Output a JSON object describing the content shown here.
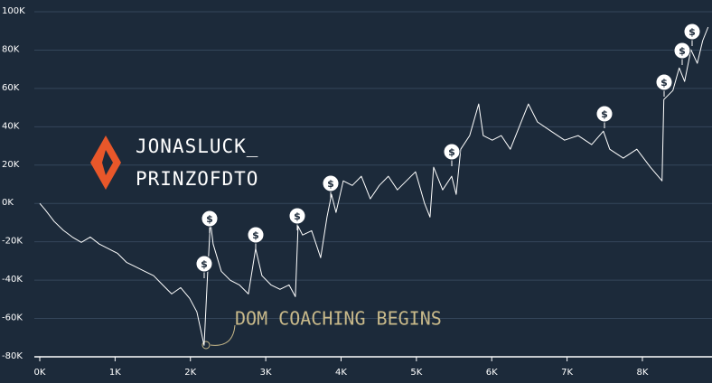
{
  "chart_data": {
    "type": "line",
    "player": [
      "JONASLUCK_",
      "PRINZOFDTO"
    ],
    "annotation": "DOM COACHING BEGINS",
    "color": "#ffffff",
    "grid": true,
    "xlim": [
      0,
      8900
    ],
    "ylim": [
      -80000,
      100000
    ],
    "xticks": [
      {
        "value": 0,
        "label": "0K"
      },
      {
        "value": 1000,
        "label": "1K"
      },
      {
        "value": 2000,
        "label": "2K"
      },
      {
        "value": 3000,
        "label": "3K"
      },
      {
        "value": 4000,
        "label": "4K"
      },
      {
        "value": 5000,
        "label": "5K"
      },
      {
        "value": 6000,
        "label": "6K"
      },
      {
        "value": 7000,
        "label": "7K"
      },
      {
        "value": 8000,
        "label": "8K"
      }
    ],
    "yticks": [
      {
        "value": -80000,
        "label": "-80K"
      },
      {
        "value": -60000,
        "label": "-60K"
      },
      {
        "value": -40000,
        "label": "-40K"
      },
      {
        "value": -20000,
        "label": "-20K"
      },
      {
        "value": 0,
        "label": "0K"
      },
      {
        "value": 20000,
        "label": "20K"
      },
      {
        "value": 40000,
        "label": "40K"
      },
      {
        "value": 60000,
        "label": "60K"
      },
      {
        "value": 80000,
        "label": "80K"
      },
      {
        "value": 100000,
        "label": "100K"
      }
    ],
    "x": [
      0,
      72,
      192,
      312,
      432,
      552,
      671,
      791,
      911,
      1031,
      1151,
      1271,
      1391,
      1511,
      1631,
      1751,
      1871,
      1990,
      2086,
      2182,
      2230,
      2266,
      2302,
      2410,
      2530,
      2650,
      2770,
      2866,
      2950,
      3070,
      3189,
      3309,
      3393,
      3429,
      3489,
      3609,
      3729,
      3813,
      3873,
      3933,
      4029,
      4149,
      4269,
      4388,
      4508,
      4628,
      4748,
      4868,
      4988,
      5108,
      5180,
      5228,
      5348,
      5468,
      5528,
      5588,
      5707,
      5827,
      5887,
      6007,
      6127,
      6247,
      6367,
      6487,
      6607,
      6787,
      6966,
      7146,
      7326,
      7482,
      7566,
      7746,
      7926,
      8106,
      8261,
      8285,
      8405,
      8489,
      8561,
      8645,
      8729,
      8801,
      8873
    ],
    "values": [
      0,
      -3300,
      -9400,
      -14000,
      -17500,
      -20300,
      -17500,
      -21200,
      -23600,
      -26000,
      -30700,
      -33000,
      -35400,
      -37700,
      -42500,
      -47200,
      -43900,
      -49500,
      -56600,
      -74000,
      -35400,
      -9400,
      -21200,
      -35400,
      -40100,
      -42500,
      -47200,
      -23600,
      -37700,
      -42500,
      -44800,
      -42500,
      -48600,
      -11800,
      -16500,
      -14200,
      -28300,
      -7100,
      4700,
      -4700,
      11800,
      9400,
      14200,
      2400,
      9400,
      14200,
      7100,
      11800,
      16500,
      0,
      -7100,
      18900,
      7100,
      14200,
      4700,
      28300,
      35400,
      51900,
      35400,
      33000,
      35400,
      28300,
      40100,
      51900,
      42500,
      37700,
      33000,
      35400,
      30700,
      37700,
      28300,
      23600,
      28300,
      18900,
      11800,
      54200,
      58900,
      70700,
      63600,
      80200,
      73100,
      84900,
      92000
    ]
  }
}
